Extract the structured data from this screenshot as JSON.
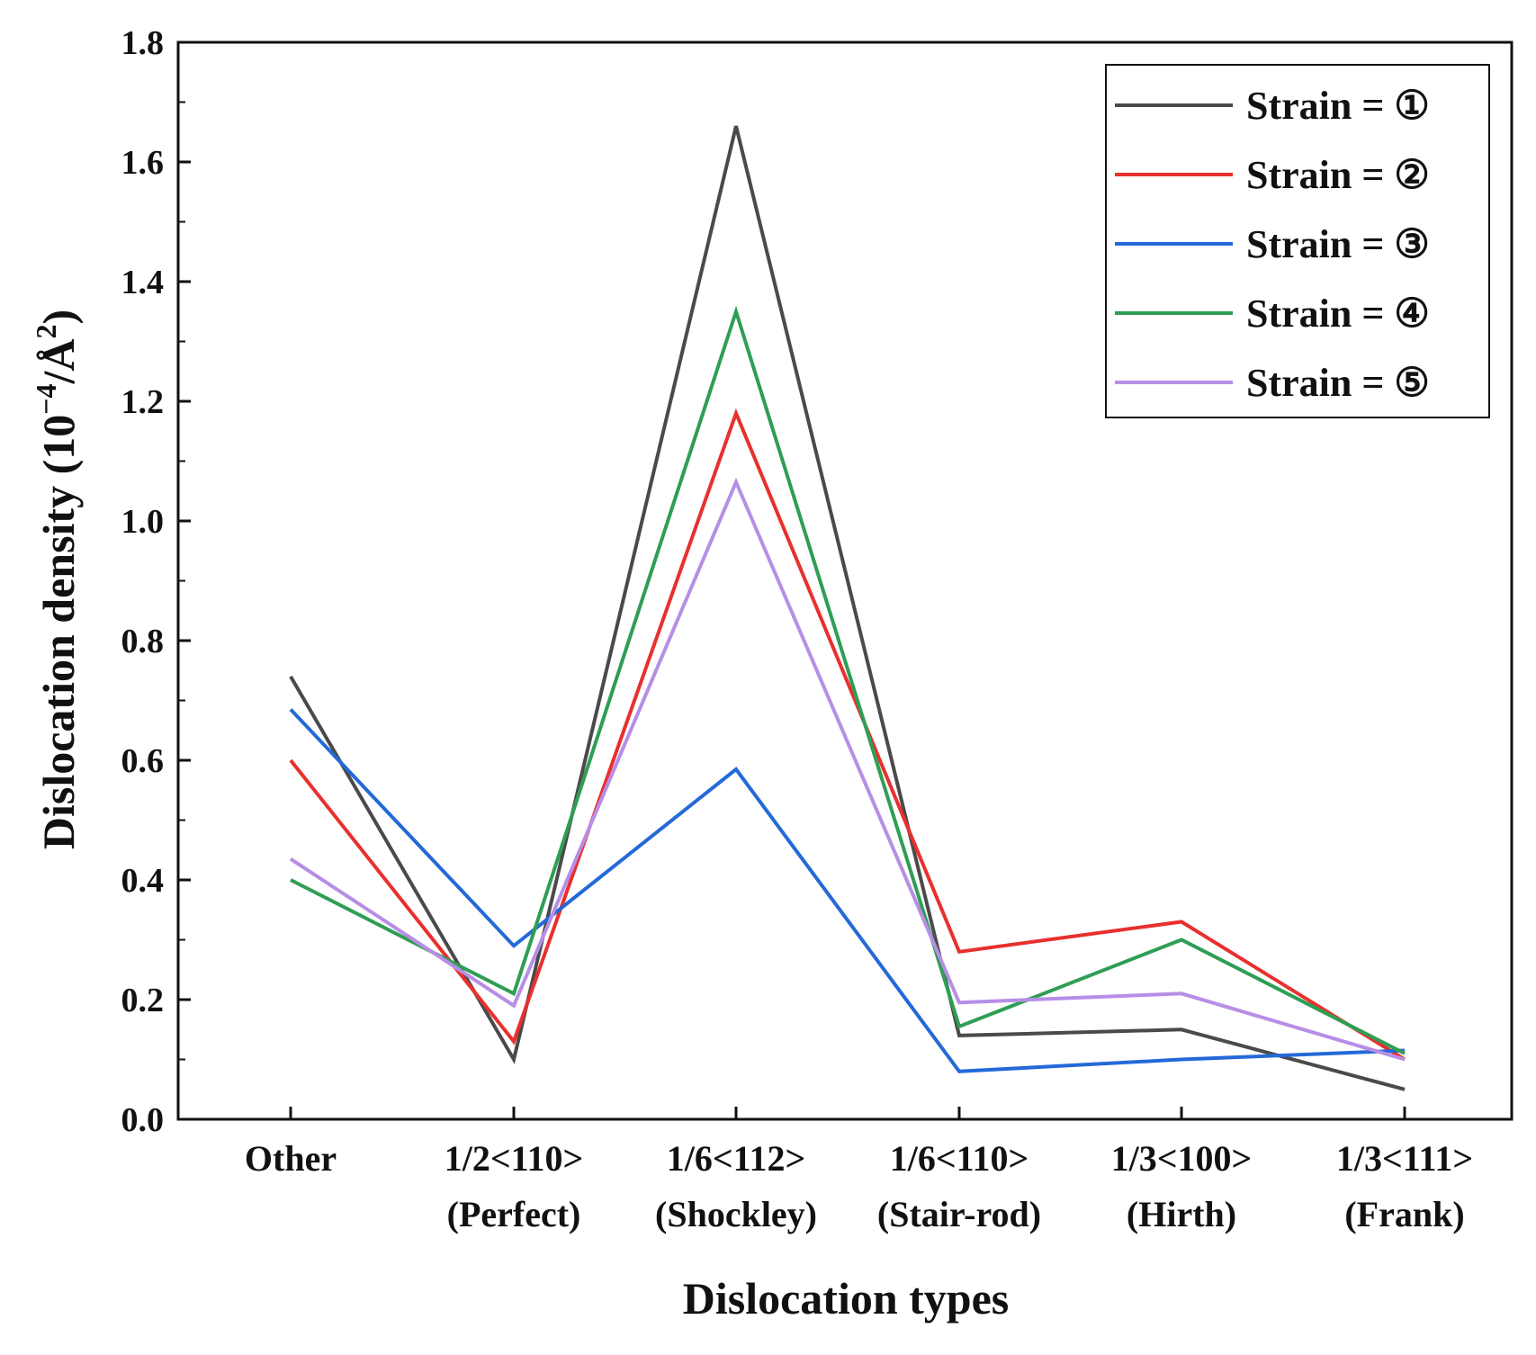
{
  "chart_data": {
    "type": "line",
    "title": "",
    "xlabel": "Dislocation types",
    "ylabel_main": "Dislocation density (10",
    "ylabel_exp": "−4",
    "ylabel_unit": "/Å",
    "ylabel_exp2": "2",
    "ylabel_close": ")",
    "ylim": [
      0,
      1.8
    ],
    "yticks": [
      "0.0",
      "0.2",
      "0.4",
      "0.6",
      "0.8",
      "1.0",
      "1.2",
      "1.4",
      "1.6",
      "1.8"
    ],
    "categories": [
      {
        "line1": "Other",
        "line2": ""
      },
      {
        "line1": "1/2<110>",
        "line2": "(Perfect)"
      },
      {
        "line1": "1/6<112>",
        "line2": "(Shockley)"
      },
      {
        "line1": "1/6<110>",
        "line2": "(Stair-rod)"
      },
      {
        "line1": "1/3<100>",
        "line2": "(Hirth)"
      },
      {
        "line1": "1/3<111>",
        "line2": "(Frank)"
      }
    ],
    "legend_position": "top-right",
    "series": [
      {
        "name": "Strain = ①",
        "color": "#4a4a4a",
        "values": [
          0.74,
          0.1,
          1.66,
          0.14,
          0.15,
          0.05
        ]
      },
      {
        "name": "Strain = ②",
        "color": "#e8302e",
        "values": [
          0.6,
          0.13,
          1.18,
          0.28,
          0.33,
          0.1
        ]
      },
      {
        "name": "Strain = ③",
        "color": "#2469d8",
        "values": [
          0.685,
          0.29,
          0.585,
          0.08,
          0.1,
          0.115
        ]
      },
      {
        "name": "Strain = ④",
        "color": "#2e9e54",
        "values": [
          0.4,
          0.21,
          1.35,
          0.155,
          0.3,
          0.11
        ]
      },
      {
        "name": "Strain = ⑤",
        "color": "#b78ee6",
        "values": [
          0.435,
          0.19,
          1.065,
          0.195,
          0.21,
          0.1
        ]
      }
    ]
  }
}
